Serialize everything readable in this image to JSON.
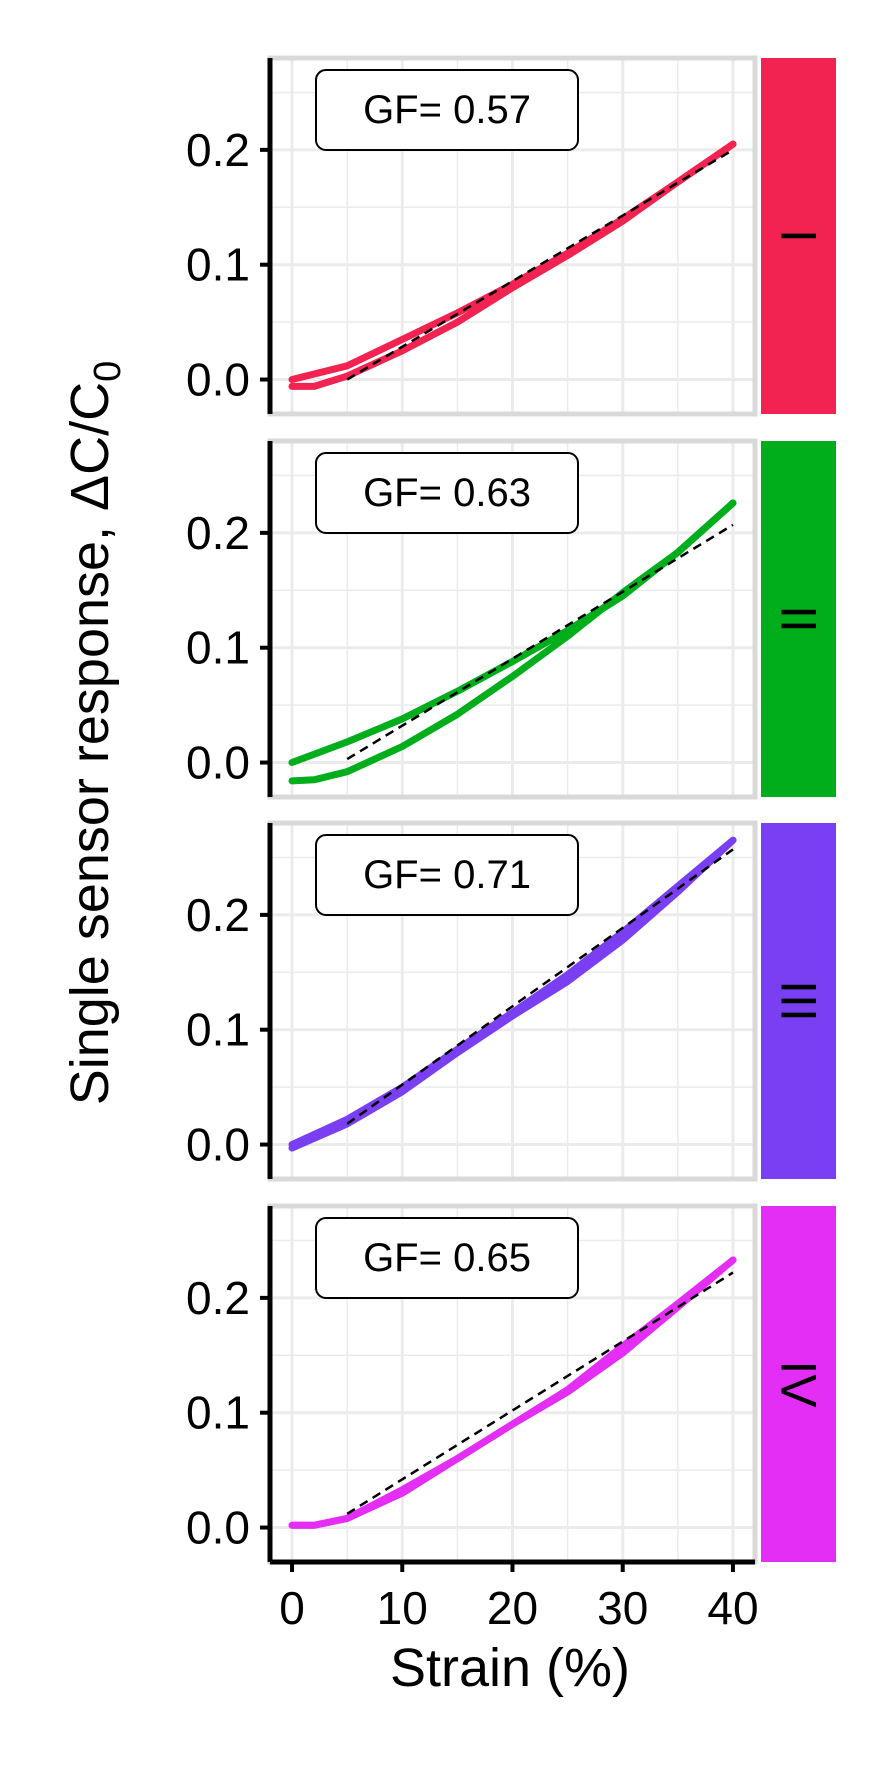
{
  "chart_data": {
    "type": "line",
    "xlabel": "Strain (%)",
    "ylabel_main": "Single sensor response, ",
    "ylabel_math": "ΔC/C",
    "ylabel_sub": "0",
    "xlim": [
      -2,
      42
    ],
    "ylim": [
      -0.03,
      0.28
    ],
    "xticks": [
      "0",
      "10",
      "20",
      "30",
      "40"
    ],
    "xtick_values": [
      0,
      10,
      20,
      30,
      40
    ],
    "yticks": [
      "0.0",
      "0.1",
      "0.2"
    ],
    "ytick_values": [
      0.0,
      0.1,
      0.2
    ],
    "grid": true,
    "panels": [
      {
        "strip_label": "I",
        "color": "#f22350",
        "annotation": "GF= 0.57",
        "loading": {
          "x": [
            0,
            5,
            10,
            15,
            20,
            25,
            30,
            35,
            40
          ],
          "y": [
            0.0,
            0.012,
            0.035,
            0.058,
            0.083,
            0.11,
            0.14,
            0.172,
            0.205
          ]
        },
        "unloading": {
          "x": [
            40,
            35,
            30,
            25,
            20,
            15,
            10,
            5,
            2,
            0
          ],
          "y": [
            0.205,
            0.172,
            0.138,
            0.108,
            0.08,
            0.05,
            0.025,
            0.003,
            -0.006,
            -0.006
          ]
        },
        "fit": {
          "x": [
            5,
            40
          ],
          "y": [
            0.0,
            0.2
          ]
        }
      },
      {
        "strip_label": "II",
        "color": "#00ae1b",
        "annotation": "GF= 0.63",
        "loading": {
          "x": [
            0,
            5,
            10,
            15,
            20,
            25,
            30,
            35,
            40
          ],
          "y": [
            0.0,
            0.018,
            0.038,
            0.062,
            0.088,
            0.115,
            0.145,
            0.183,
            0.226
          ]
        },
        "unloading": {
          "x": [
            40,
            35,
            30,
            25,
            20,
            15,
            10,
            5,
            2,
            0
          ],
          "y": [
            0.226,
            0.183,
            0.148,
            0.11,
            0.075,
            0.042,
            0.014,
            -0.008,
            -0.015,
            -0.016
          ]
        },
        "fit": {
          "x": [
            5,
            40
          ],
          "y": [
            0.003,
            0.207
          ]
        }
      },
      {
        "strip_label": "III",
        "color": "#7a3ff2",
        "annotation": "GF= 0.71",
        "loading": {
          "x": [
            0,
            5,
            10,
            15,
            20,
            25,
            30,
            35,
            40
          ],
          "y": [
            0.0,
            0.022,
            0.05,
            0.083,
            0.115,
            0.148,
            0.185,
            0.225,
            0.265
          ]
        },
        "unloading": {
          "x": [
            40,
            35,
            30,
            25,
            20,
            15,
            10,
            5,
            0
          ],
          "y": [
            0.265,
            0.22,
            0.178,
            0.142,
            0.112,
            0.08,
            0.046,
            0.018,
            -0.003
          ]
        },
        "fit": {
          "x": [
            5,
            40
          ],
          "y": [
            0.018,
            0.257
          ]
        }
      },
      {
        "strip_label": "IV",
        "color": "#e42ef5",
        "annotation": "GF= 0.65",
        "loading": {
          "x": [
            0,
            2,
            5,
            10,
            15,
            20,
            25,
            30,
            35,
            40
          ],
          "y": [
            0.002,
            0.002,
            0.008,
            0.033,
            0.06,
            0.09,
            0.12,
            0.158,
            0.195,
            0.233
          ]
        },
        "unloading": {
          "x": [
            40,
            35,
            30,
            25,
            20,
            15,
            10,
            5,
            2,
            0
          ],
          "y": [
            0.233,
            0.192,
            0.152,
            0.118,
            0.09,
            0.06,
            0.03,
            0.008,
            0.002,
            0.002
          ]
        },
        "fit": {
          "x": [
            5,
            40
          ],
          "y": [
            0.012,
            0.222
          ]
        }
      }
    ]
  }
}
